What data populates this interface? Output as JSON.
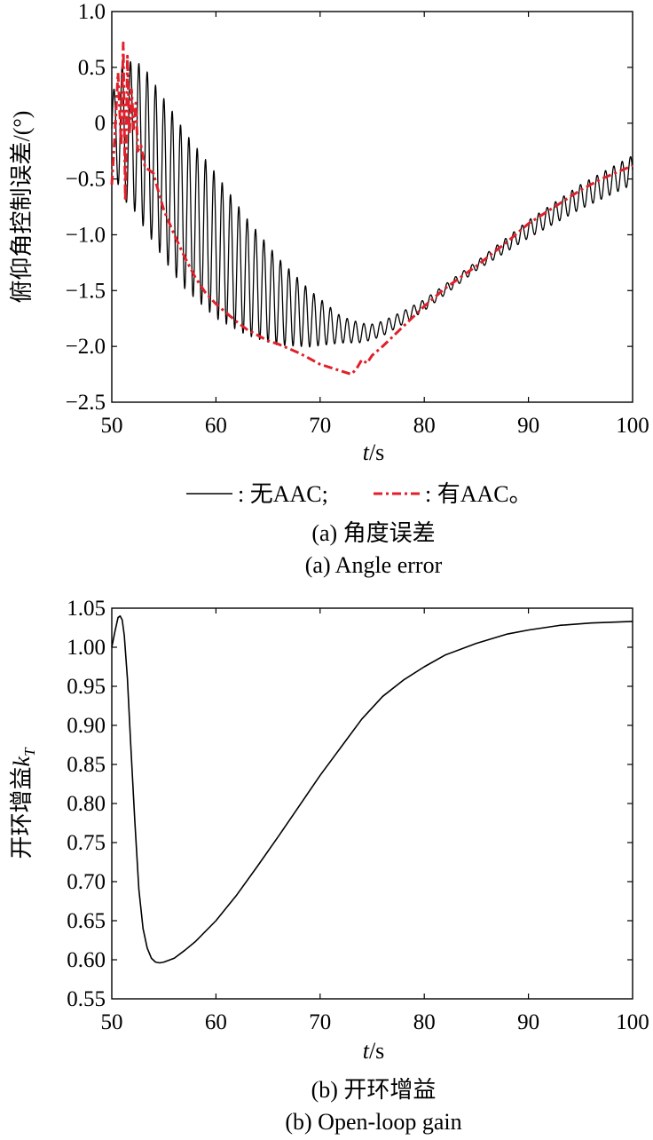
{
  "chart_data": [
    {
      "type": "line",
      "caption_cn": "(a) 角度误差",
      "caption_en": "(a) Angle error",
      "ylabel": "俯仰角控制误差/(°)",
      "xlabel_var": "t",
      "xlabel_unit": "/s",
      "xlim": [
        50,
        100
      ],
      "ylim": [
        -2.5,
        1.0
      ],
      "xticks": [
        "50",
        "60",
        "70",
        "80",
        "90",
        "100"
      ],
      "yticks": [
        "1.0",
        "0.5",
        "0",
        "−0.5",
        "−1.0",
        "−1.5",
        "−2.0",
        "−2.5"
      ],
      "legend_position": "below",
      "legend": [
        {
          "label": ": 无AAC;",
          "color": "#000000",
          "dash": "solid"
        },
        {
          "label": ": 有AAC。",
          "color": "#e0202a",
          "dash": "dashdot"
        }
      ],
      "series": [
        {
          "legend_label": ": 无AAC;",
          "color": "#000000",
          "oscillating": true,
          "oscillation_period_s": 0.8,
          "centre": {
            "x": [
              50,
              51,
              52,
              53,
              55,
              57,
              60,
              63,
              66,
              69,
              72,
              74,
              75,
              76,
              78,
              80,
              85,
              90,
              95,
              100
            ],
            "y": [
              -0.05,
              -0.08,
              -0.1,
              -0.2,
              -0.5,
              -0.78,
              -1.1,
              -1.38,
              -1.6,
              -1.75,
              -1.85,
              -1.88,
              -1.87,
              -1.84,
              -1.74,
              -1.63,
              -1.28,
              -0.95,
              -0.66,
              -0.42
            ]
          },
          "amplitude": {
            "x": [
              50,
              51,
              53,
              56,
              60,
              64,
              68,
              72,
              75,
              80,
              85,
              90,
              95,
              100
            ],
            "y": [
              0.3,
              0.6,
              0.72,
              0.72,
              0.65,
              0.48,
              0.3,
              0.12,
              0.07,
              0.05,
              0.04,
              0.08,
              0.11,
              0.13
            ]
          }
        },
        {
          "legend_label": ": 有AAC。",
          "color": "#e0202a",
          "oscillating": false,
          "x": [
            50,
            50.3,
            50.6,
            50.9,
            51.1,
            51.3,
            51.5,
            51.7,
            51.9,
            52.1,
            52.3,
            52.5,
            52.8,
            53.2,
            53.6,
            54,
            54.5,
            55,
            56,
            57,
            58,
            59,
            60,
            61,
            62,
            63,
            64,
            65,
            66,
            67,
            68,
            69,
            70,
            71,
            72,
            73,
            73.5,
            74,
            74.5,
            75,
            76,
            78,
            80,
            82,
            85,
            88,
            90,
            92,
            95,
            97,
            100
          ],
          "y": [
            -0.55,
            -0.1,
            0.45,
            -0.2,
            0.72,
            -0.7,
            0.6,
            -0.1,
            0.3,
            -0.05,
            0.18,
            -0.25,
            -0.2,
            -0.4,
            -0.42,
            -0.45,
            -0.62,
            -0.78,
            -1.0,
            -1.2,
            -1.38,
            -1.52,
            -1.62,
            -1.7,
            -1.78,
            -1.85,
            -1.9,
            -1.95,
            -1.98,
            -2.02,
            -2.06,
            -2.11,
            -2.16,
            -2.19,
            -2.22,
            -2.25,
            -2.2,
            -2.12,
            -2.15,
            -2.08,
            -2.0,
            -1.82,
            -1.64,
            -1.48,
            -1.28,
            -1.06,
            -0.9,
            -0.78,
            -0.6,
            -0.5,
            -0.38
          ]
        }
      ]
    },
    {
      "type": "line",
      "caption_cn": "(b) 开环增益",
      "caption_en": "(b) Open-loop gain",
      "ylabel": "开环增益",
      "ylabel_var": "k",
      "ylabel_sub": "T",
      "xlabel_var": "t",
      "xlabel_unit": "/s",
      "xlim": [
        50,
        100
      ],
      "ylim": [
        0.55,
        1.05
      ],
      "xticks": [
        "50",
        "60",
        "70",
        "80",
        "90",
        "100"
      ],
      "yticks": [
        "1.05",
        "1.00",
        "0.95",
        "0.90",
        "0.85",
        "0.80",
        "0.75",
        "0.70",
        "0.65",
        "0.60",
        "0.55"
      ],
      "series": [
        {
          "color": "#000000",
          "x": [
            50,
            50.3,
            50.6,
            50.8,
            51.0,
            51.2,
            51.5,
            51.8,
            52.2,
            52.6,
            53,
            53.4,
            53.8,
            54.2,
            54.6,
            55,
            56,
            57,
            58,
            60,
            62,
            64,
            66,
            68,
            70,
            72,
            74,
            76,
            78,
            80,
            82,
            85,
            88,
            90,
            93,
            96,
            100
          ],
          "y": [
            1.0,
            1.02,
            1.038,
            1.04,
            1.035,
            1.015,
            0.96,
            0.88,
            0.78,
            0.69,
            0.64,
            0.615,
            0.602,
            0.597,
            0.596,
            0.597,
            0.602,
            0.612,
            0.623,
            0.65,
            0.683,
            0.72,
            0.758,
            0.797,
            0.836,
            0.872,
            0.908,
            0.937,
            0.958,
            0.975,
            0.99,
            1.005,
            1.017,
            1.022,
            1.028,
            1.031,
            1.033
          ]
        }
      ]
    }
  ]
}
